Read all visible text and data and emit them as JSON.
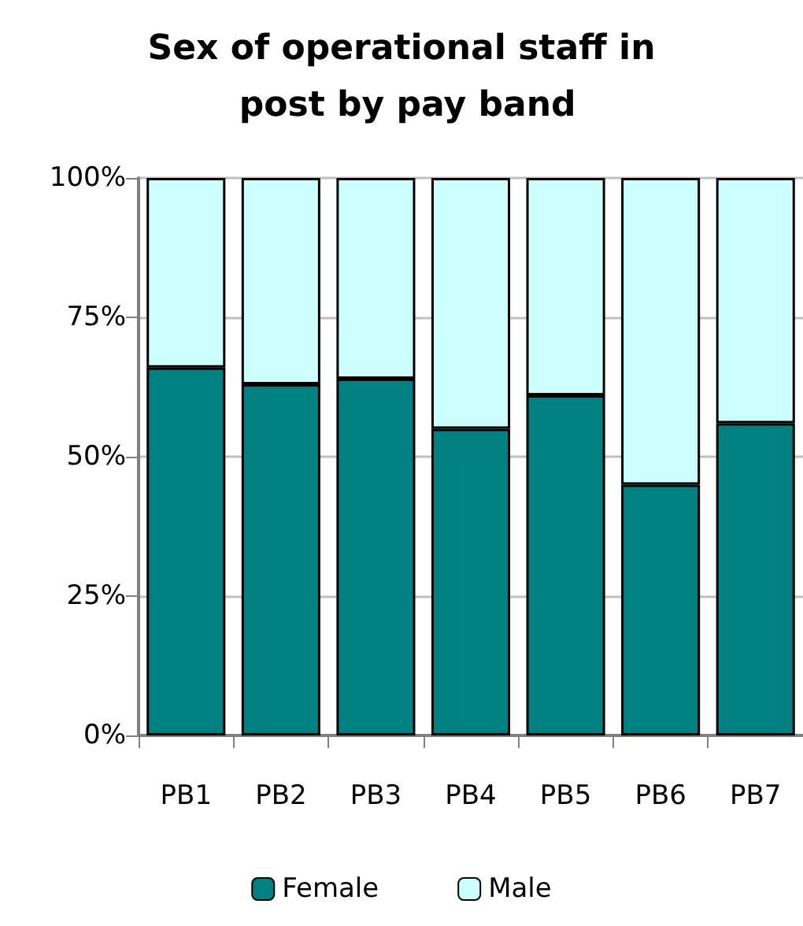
{
  "chart_data": {
    "type": "bar",
    "title": "Sex of operational staff in post by pay band",
    "categories": [
      "PB1",
      "PB2",
      "PB3",
      "PB4",
      "PB5",
      "PB6",
      "PB7"
    ],
    "series": [
      {
        "name": "Female",
        "color": "#008080",
        "values": [
          66,
          63,
          64,
          55,
          61,
          45,
          56
        ]
      },
      {
        "name": "Male",
        "color": "#ccffff",
        "values": [
          34,
          37,
          36,
          45,
          39,
          55,
          44
        ]
      }
    ],
    "stacked": true,
    "ylim": [
      0,
      100
    ],
    "yticks": [
      {
        "value": 0,
        "label": "0%"
      },
      {
        "value": 25,
        "label": "25%"
      },
      {
        "value": 50,
        "label": "50%"
      },
      {
        "value": 75,
        "label": "75%"
      },
      {
        "value": 100,
        "label": "100%"
      }
    ],
    "grid": "y",
    "legend": "bottom"
  }
}
